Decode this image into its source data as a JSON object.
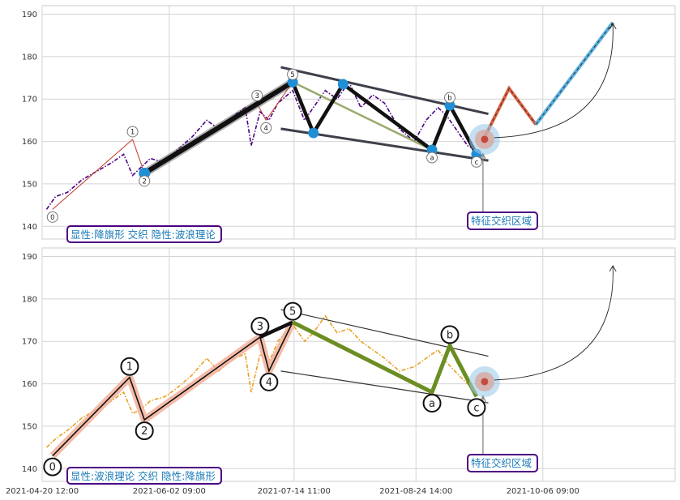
{
  "chart_data": [
    {
      "type": "line",
      "panel": "top",
      "ylim": [
        137,
        192
      ],
      "y_ticks": [
        140,
        150,
        160,
        170,
        180,
        190
      ],
      "x_range": [
        "2021-04-20 12:00",
        "2021-11-20 00:00"
      ],
      "grid": true,
      "colors": {
        "price": "#4b0082",
        "main_wave": "#111111",
        "flag_lines": "#3d3f4a",
        "diagonal": "#9aab6e",
        "projection_red": "#e06040",
        "projection_blue": "#5ab0e0"
      },
      "price_series": [
        [
          "2021-04-22",
          144
        ],
        [
          "2021-04-25",
          147
        ],
        [
          "2021-04-29",
          148
        ],
        [
          "2021-05-04",
          151
        ],
        [
          "2021-05-09",
          153
        ],
        [
          "2021-05-14",
          155
        ],
        [
          "2021-05-18",
          157
        ],
        [
          "2021-05-21",
          152
        ],
        [
          "2021-05-24",
          154
        ],
        [
          "2021-05-27",
          156
        ],
        [
          "2021-06-01",
          155
        ],
        [
          "2021-06-05",
          158
        ],
        [
          "2021-06-10",
          161
        ],
        [
          "2021-06-15",
          165
        ],
        [
          "2021-06-19",
          163
        ],
        [
          "2021-06-24",
          166
        ],
        [
          "2021-06-28",
          168
        ],
        [
          "2021-06-30",
          159
        ],
        [
          "2021-07-03",
          167
        ],
        [
          "2021-07-06",
          165
        ],
        [
          "2021-07-09",
          169
        ],
        [
          "2021-07-14",
          172
        ],
        [
          "2021-07-18",
          165
        ],
        [
          "2021-07-21",
          168
        ],
        [
          "2021-07-25",
          172
        ],
        [
          "2021-07-29",
          170
        ],
        [
          "2021-08-02",
          174
        ],
        [
          "2021-08-06",
          168
        ],
        [
          "2021-08-10",
          171
        ],
        [
          "2021-08-14",
          169
        ],
        [
          "2021-08-19",
          163
        ],
        [
          "2021-08-24",
          160
        ],
        [
          "2021-08-28",
          165
        ],
        [
          "2021-09-01",
          168
        ],
        [
          "2021-09-04",
          166
        ],
        [
          "2021-09-08",
          162
        ],
        [
          "2021-09-11",
          159
        ],
        [
          "2021-09-14",
          158
        ]
      ],
      "waves": [
        {
          "label": "0",
          "x": "2021-04-24",
          "y": 144
        },
        {
          "label": "1",
          "x": "2021-05-21",
          "y": 160.5
        },
        {
          "label": "2",
          "x": "2021-05-25",
          "y": 152.5
        },
        {
          "label": "3",
          "x": "2021-07-02",
          "y": 169
        },
        {
          "label": "4",
          "x": "2021-07-05",
          "y": 165
        },
        {
          "label": "5",
          "x": "2021-07-14",
          "y": 174
        },
        {
          "label": "a",
          "x": "2021-08-30",
          "y": 158
        },
        {
          "label": "b",
          "x": "2021-09-05",
          "y": 168.5
        },
        {
          "label": "c",
          "x": "2021-09-14",
          "y": 157
        }
      ],
      "flag_points": [
        {
          "x": "2021-07-14",
          "y": 174
        },
        {
          "x": "2021-07-21",
          "y": 162
        },
        {
          "x": "2021-07-31",
          "y": 173.5
        },
        {
          "x": "2021-08-30",
          "y": 158
        },
        {
          "x": "2021-09-05",
          "y": 168.5
        },
        {
          "x": "2021-09-14",
          "y": 157
        }
      ],
      "flag_upper": [
        {
          "x": "2021-07-10",
          "y": 177.5
        },
        {
          "x": "2021-09-18",
          "y": 166.5
        }
      ],
      "flag_lower": [
        {
          "x": "2021-07-10",
          "y": 163
        },
        {
          "x": "2021-09-18",
          "y": 155.5
        }
      ],
      "projection_red": [
        {
          "x": "2021-09-16",
          "y": 160
        },
        {
          "x": "2021-09-25",
          "y": 172.5
        },
        {
          "x": "2021-10-04",
          "y": 164
        }
      ],
      "projection_blue": [
        {
          "x": "2021-10-04",
          "y": 164
        },
        {
          "x": "2021-10-30",
          "y": 188
        }
      ],
      "annotation_left": "显性:降旗形 交织 隐性:波浪理论",
      "annotation_right": "特征交织区域"
    },
    {
      "type": "line",
      "panel": "bottom",
      "ylim": [
        137,
        192
      ],
      "y_ticks": [
        140,
        150,
        160,
        170,
        180,
        190
      ],
      "x_range": [
        "2021-04-20 12:00",
        "2021-11-20 00:00"
      ],
      "x_ticks": [
        "2021-04-20 12:00",
        "2021-06-02 09:00",
        "2021-07-14 11:00",
        "2021-08-24 14:00",
        "2021-10-06 09:00"
      ],
      "grid": true,
      "colors": {
        "price": "#e8a020",
        "impulse": "#111111",
        "correction": "#6b8e23",
        "highlight": "#f2b09a",
        "flag_lines": "#333333"
      },
      "price_series": [
        [
          "2021-04-22",
          145
        ],
        [
          "2021-04-25",
          147
        ],
        [
          "2021-04-29",
          149
        ],
        [
          "2021-05-04",
          152
        ],
        [
          "2021-05-09",
          154
        ],
        [
          "2021-05-14",
          156
        ],
        [
          "2021-05-18",
          158
        ],
        [
          "2021-05-21",
          153
        ],
        [
          "2021-05-24",
          154
        ],
        [
          "2021-05-27",
          156
        ],
        [
          "2021-06-01",
          157
        ],
        [
          "2021-06-05",
          159
        ],
        [
          "2021-06-10",
          162
        ],
        [
          "2021-06-15",
          166
        ],
        [
          "2021-06-19",
          163
        ],
        [
          "2021-06-24",
          166
        ],
        [
          "2021-06-28",
          167
        ],
        [
          "2021-06-30",
          158
        ],
        [
          "2021-07-03",
          167
        ],
        [
          "2021-07-06",
          165
        ],
        [
          "2021-07-09",
          170
        ],
        [
          "2021-07-14",
          174
        ],
        [
          "2021-07-18",
          170
        ],
        [
          "2021-07-21",
          172
        ],
        [
          "2021-07-25",
          176
        ],
        [
          "2021-07-29",
          172
        ],
        [
          "2021-08-02",
          173
        ],
        [
          "2021-08-06",
          170
        ],
        [
          "2021-08-10",
          168
        ],
        [
          "2021-08-14",
          166
        ],
        [
          "2021-08-19",
          163
        ],
        [
          "2021-08-24",
          164
        ],
        [
          "2021-08-28",
          166
        ],
        [
          "2021-09-01",
          168
        ],
        [
          "2021-09-04",
          165
        ],
        [
          "2021-09-08",
          162
        ],
        [
          "2021-09-11",
          160
        ],
        [
          "2021-09-14",
          158
        ]
      ],
      "waves": [
        {
          "label": "0",
          "x": "2021-04-24",
          "y": 143
        },
        {
          "label": "1",
          "x": "2021-05-20",
          "y": 161.5
        },
        {
          "label": "2",
          "x": "2021-05-25",
          "y": 151.5
        },
        {
          "label": "3",
          "x": "2021-07-03",
          "y": 171
        },
        {
          "label": "4",
          "x": "2021-07-06",
          "y": 163
        },
        {
          "label": "5",
          "x": "2021-07-14",
          "y": 174.5
        },
        {
          "label": "a",
          "x": "2021-08-30",
          "y": 158
        },
        {
          "label": "b",
          "x": "2021-09-05",
          "y": 169
        },
        {
          "label": "c",
          "x": "2021-09-14",
          "y": 157
        }
      ],
      "flag_upper": [
        {
          "x": "2021-07-10",
          "y": 177.5
        },
        {
          "x": "2021-09-18",
          "y": 166.5
        }
      ],
      "flag_lower": [
        {
          "x": "2021-07-10",
          "y": 163
        },
        {
          "x": "2021-09-18",
          "y": 155.5
        }
      ],
      "annotation_left": "显性:波浪理论 交织 隐性:降旗形",
      "annotation_right": "特征交织区域"
    }
  ]
}
